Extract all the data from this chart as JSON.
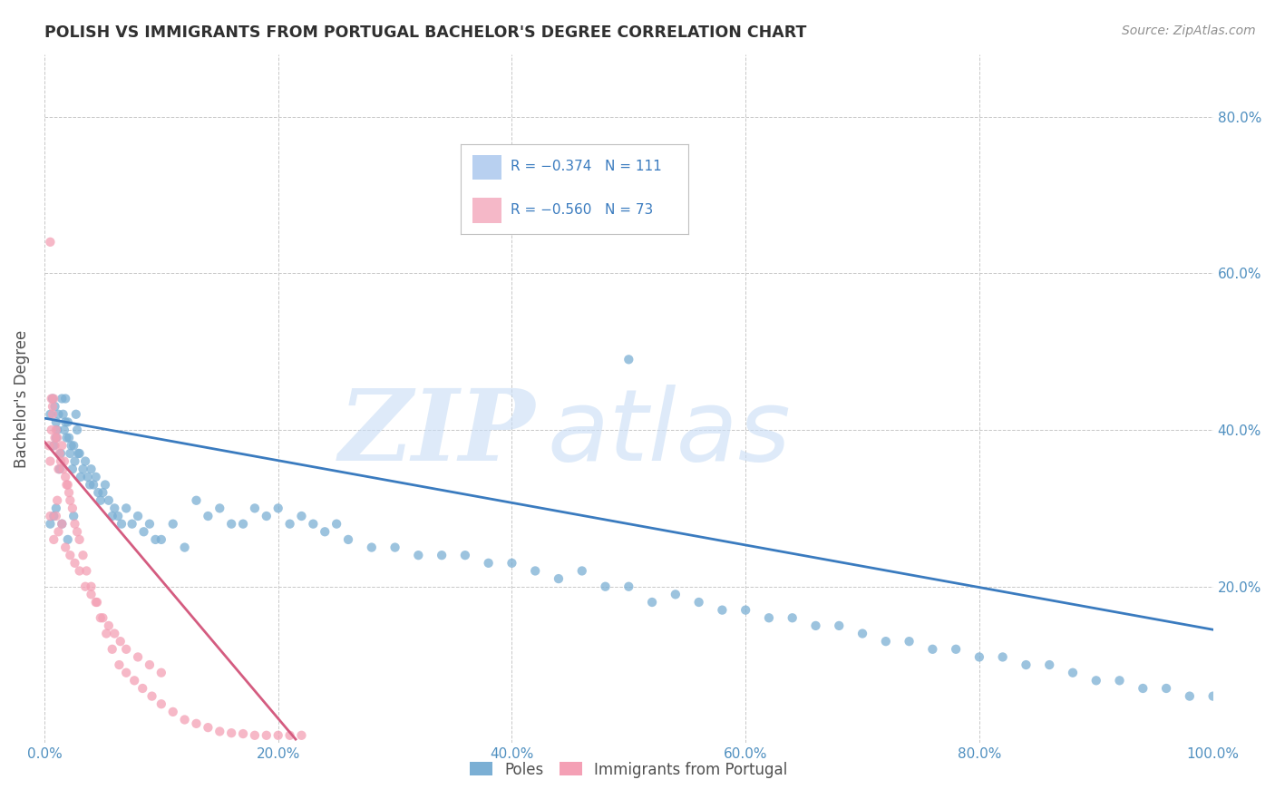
{
  "title": "POLISH VS IMMIGRANTS FROM PORTUGAL BACHELOR'S DEGREE CORRELATION CHART",
  "source": "Source: ZipAtlas.com",
  "ylabel": "Bachelor's Degree",
  "xlim": [
    0.0,
    1.0
  ],
  "ylim": [
    0.0,
    0.88
  ],
  "x_ticks": [
    0.0,
    0.2,
    0.4,
    0.6,
    0.8,
    1.0
  ],
  "x_tick_labels": [
    "0.0%",
    "20.0%",
    "40.0%",
    "60.0%",
    "80.0%",
    "100.0%"
  ],
  "y_ticks": [
    0.2,
    0.4,
    0.6,
    0.8
  ],
  "y_tick_labels": [
    "20.0%",
    "40.0%",
    "60.0%",
    "80.0%"
  ],
  "watermark_zip": "ZIP",
  "watermark_atlas": "atlas",
  "poles_color": "#7bafd4",
  "portugal_color": "#f4a0b5",
  "poles_line_color": "#3a7bbf",
  "portugal_line_color": "#d45c80",
  "poles_line_x": [
    0.0,
    1.0
  ],
  "poles_line_y": [
    0.415,
    0.145
  ],
  "portugal_line_x": [
    0.0,
    0.215
  ],
  "portugal_line_y": [
    0.385,
    0.005
  ],
  "legend_labels_bottom": [
    "Poles",
    "Immigrants from Portugal"
  ],
  "legend_box_color_blue": "#b8d0f0",
  "legend_box_color_pink": "#f5b8c8",
  "legend_text_color": "#3a7bbf",
  "background_color": "#ffffff",
  "grid_color": "#c8c8c8",
  "title_color": "#303030",
  "source_color": "#909090",
  "axis_tick_color": "#5090c0",
  "poles_x": [
    0.005,
    0.007,
    0.008,
    0.009,
    0.01,
    0.01,
    0.011,
    0.012,
    0.013,
    0.014,
    0.015,
    0.016,
    0.017,
    0.018,
    0.018,
    0.019,
    0.02,
    0.021,
    0.022,
    0.023,
    0.024,
    0.025,
    0.026,
    0.027,
    0.028,
    0.029,
    0.03,
    0.031,
    0.033,
    0.035,
    0.037,
    0.039,
    0.04,
    0.042,
    0.044,
    0.046,
    0.048,
    0.05,
    0.052,
    0.055,
    0.058,
    0.06,
    0.063,
    0.066,
    0.07,
    0.075,
    0.08,
    0.085,
    0.09,
    0.095,
    0.1,
    0.11,
    0.12,
    0.13,
    0.14,
    0.15,
    0.16,
    0.17,
    0.18,
    0.19,
    0.2,
    0.21,
    0.22,
    0.23,
    0.24,
    0.25,
    0.26,
    0.28,
    0.3,
    0.32,
    0.34,
    0.36,
    0.38,
    0.4,
    0.42,
    0.44,
    0.46,
    0.48,
    0.5,
    0.52,
    0.54,
    0.56,
    0.58,
    0.6,
    0.62,
    0.64,
    0.66,
    0.68,
    0.7,
    0.72,
    0.74,
    0.76,
    0.78,
    0.8,
    0.82,
    0.84,
    0.86,
    0.88,
    0.9,
    0.92,
    0.94,
    0.96,
    0.98,
    1.0,
    0.01,
    0.015,
    0.02,
    0.025,
    0.005,
    0.008,
    0.5
  ],
  "poles_y": [
    0.42,
    0.44,
    0.38,
    0.43,
    0.39,
    0.41,
    0.4,
    0.42,
    0.35,
    0.37,
    0.44,
    0.42,
    0.4,
    0.44,
    0.41,
    0.39,
    0.41,
    0.39,
    0.37,
    0.38,
    0.35,
    0.38,
    0.36,
    0.42,
    0.4,
    0.37,
    0.37,
    0.34,
    0.35,
    0.36,
    0.34,
    0.33,
    0.35,
    0.33,
    0.34,
    0.32,
    0.31,
    0.32,
    0.33,
    0.31,
    0.29,
    0.3,
    0.29,
    0.28,
    0.3,
    0.28,
    0.29,
    0.27,
    0.28,
    0.26,
    0.26,
    0.28,
    0.25,
    0.31,
    0.29,
    0.3,
    0.28,
    0.28,
    0.3,
    0.29,
    0.3,
    0.28,
    0.29,
    0.28,
    0.27,
    0.28,
    0.26,
    0.25,
    0.25,
    0.24,
    0.24,
    0.24,
    0.23,
    0.23,
    0.22,
    0.21,
    0.22,
    0.2,
    0.2,
    0.18,
    0.19,
    0.18,
    0.17,
    0.17,
    0.16,
    0.16,
    0.15,
    0.15,
    0.14,
    0.13,
    0.13,
    0.12,
    0.12,
    0.11,
    0.11,
    0.1,
    0.1,
    0.09,
    0.08,
    0.08,
    0.07,
    0.07,
    0.06,
    0.06,
    0.3,
    0.28,
    0.26,
    0.29,
    0.28,
    0.29,
    0.49
  ],
  "portugal_x": [
    0.004,
    0.005,
    0.006,
    0.007,
    0.008,
    0.009,
    0.01,
    0.011,
    0.012,
    0.013,
    0.014,
    0.015,
    0.016,
    0.017,
    0.018,
    0.019,
    0.02,
    0.021,
    0.022,
    0.024,
    0.026,
    0.028,
    0.03,
    0.033,
    0.036,
    0.04,
    0.044,
    0.048,
    0.053,
    0.058,
    0.064,
    0.07,
    0.077,
    0.084,
    0.092,
    0.1,
    0.11,
    0.12,
    0.13,
    0.14,
    0.15,
    0.16,
    0.17,
    0.18,
    0.19,
    0.2,
    0.21,
    0.22,
    0.005,
    0.008,
    0.01,
    0.012,
    0.015,
    0.018,
    0.022,
    0.026,
    0.03,
    0.035,
    0.04,
    0.045,
    0.05,
    0.055,
    0.06,
    0.065,
    0.07,
    0.08,
    0.09,
    0.1,
    0.005,
    0.006,
    0.007,
    0.009,
    0.011
  ],
  "portugal_y": [
    0.38,
    0.36,
    0.4,
    0.42,
    0.44,
    0.38,
    0.4,
    0.39,
    0.35,
    0.37,
    0.36,
    0.38,
    0.35,
    0.36,
    0.34,
    0.33,
    0.33,
    0.32,
    0.31,
    0.3,
    0.28,
    0.27,
    0.26,
    0.24,
    0.22,
    0.2,
    0.18,
    0.16,
    0.14,
    0.12,
    0.1,
    0.09,
    0.08,
    0.07,
    0.06,
    0.05,
    0.04,
    0.03,
    0.025,
    0.02,
    0.015,
    0.013,
    0.012,
    0.01,
    0.01,
    0.01,
    0.01,
    0.01,
    0.29,
    0.26,
    0.29,
    0.27,
    0.28,
    0.25,
    0.24,
    0.23,
    0.22,
    0.2,
    0.19,
    0.18,
    0.16,
    0.15,
    0.14,
    0.13,
    0.12,
    0.11,
    0.1,
    0.09,
    0.64,
    0.44,
    0.43,
    0.39,
    0.31
  ],
  "poles_marker_size": 55,
  "portugal_marker_size": 55
}
